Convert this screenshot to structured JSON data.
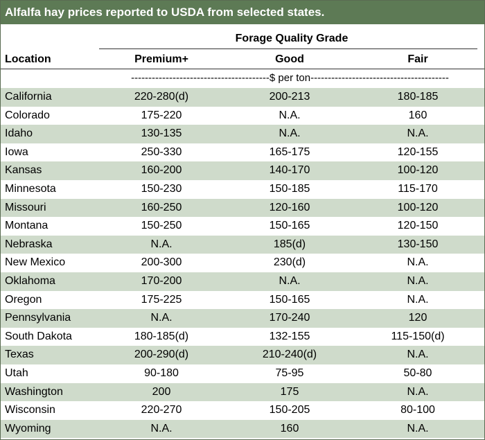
{
  "title": "Alfalfa hay prices reported to USDA from selected states.",
  "group_header": "Forage Quality Grade",
  "columns": {
    "location": "Location",
    "premium": "Premium+",
    "good": "Good",
    "fair": "Fair"
  },
  "units": "----------------------------------------$ per ton----------------------------------------",
  "rows": [
    {
      "location": "California",
      "premium": "220-280(d)",
      "good": "200-213",
      "fair": "180-185"
    },
    {
      "location": "Colorado",
      "premium": "175-220",
      "good": "N.A.",
      "fair": "160"
    },
    {
      "location": "Idaho",
      "premium": "130-135",
      "good": "N.A.",
      "fair": "N.A."
    },
    {
      "location": "Iowa",
      "premium": "250-330",
      "good": "165-175",
      "fair": "120-155"
    },
    {
      "location": "Kansas",
      "premium": "160-200",
      "good": "140-170",
      "fair": "100-120"
    },
    {
      "location": "Minnesota",
      "premium": "150-230",
      "good": "150-185",
      "fair": "115-170"
    },
    {
      "location": "Missouri",
      "premium": "160-250",
      "good": "120-160",
      "fair": "100-120"
    },
    {
      "location": "Montana",
      "premium": "150-250",
      "good": "150-165",
      "fair": "120-150"
    },
    {
      "location": "Nebraska",
      "premium": "N.A.",
      "good": "185(d)",
      "fair": "130-150"
    },
    {
      "location": "New Mexico",
      "premium": "200-300",
      "good": "230(d)",
      "fair": "N.A."
    },
    {
      "location": "Oklahoma",
      "premium": "170-200",
      "good": "N.A.",
      "fair": "N.A."
    },
    {
      "location": "Oregon",
      "premium": "175-225",
      "good": "150-165",
      "fair": "N.A."
    },
    {
      "location": "Pennsylvania",
      "premium": "N.A.",
      "good": "170-240",
      "fair": "120"
    },
    {
      "location": "South Dakota",
      "premium": "180-185(d)",
      "good": "132-155",
      "fair": "115-150(d)"
    },
    {
      "location": "Texas",
      "premium": "200-290(d)",
      "good": "210-240(d)",
      "fair": "N.A."
    },
    {
      "location": "Utah",
      "premium": "90-180",
      "good": "75-95",
      "fair": "50-80"
    },
    {
      "location": "Washington",
      "premium": "200",
      "good": "175",
      "fair": "N.A."
    },
    {
      "location": "Wisconsin",
      "premium": "220-270",
      "good": "150-205",
      "fair": "80-100"
    },
    {
      "location": "Wyoming",
      "premium": "N.A.",
      "good": "160",
      "fair": "N.A."
    }
  ],
  "colors": {
    "title_bar": "#5d7a55",
    "row_shade": "#cfdbcb"
  }
}
